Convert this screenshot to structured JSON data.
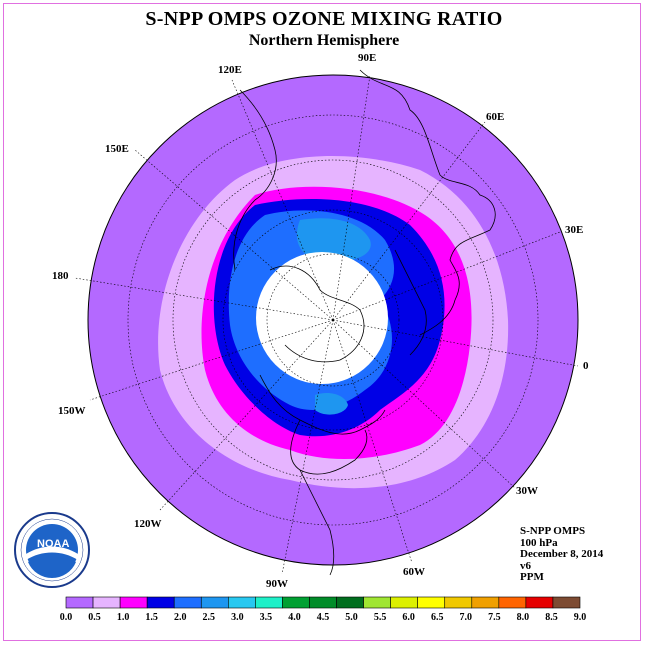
{
  "title": "S-NPP OMPS OZONE MIXING RATIO",
  "subtitle": "Northern Hemisphere",
  "longitude_labels": [
    "90E",
    "60E",
    "30E",
    "0",
    "30W",
    "60W",
    "90W",
    "120W",
    "150W",
    "180",
    "150E",
    "120E"
  ],
  "info": {
    "instrument": "S-NPP OMPS",
    "level": "100 hPa",
    "date": "December 8, 2014",
    "version": "v6",
    "units": "PPM"
  },
  "logo": {
    "text": "NOAA",
    "ring_text": "NATIONAL OCEANIC AND ATMOSPHERIC ADMINISTRATION",
    "ring_text_bottom": "U.S. DEPARTMENT OF COMMERCE"
  },
  "colorbar": {
    "ticks": [
      "0.0",
      "0.5",
      "1.0",
      "1.5",
      "2.0",
      "2.5",
      "3.0",
      "3.5",
      "4.0",
      "4.5",
      "5.0",
      "5.5",
      "6.0",
      "6.5",
      "7.0",
      "7.5",
      "8.0",
      "8.5",
      "9.0"
    ],
    "colors": [
      "#b469ff",
      "#e6b4ff",
      "#ff00ff",
      "#0000e6",
      "#1e6eff",
      "#1e96f0",
      "#28c8f0",
      "#1ef0c8",
      "#00a032",
      "#008c28",
      "#006e1e",
      "#a0e632",
      "#dcf000",
      "#ffff00",
      "#f0c800",
      "#f0a000",
      "#ff6400",
      "#e60000",
      "#7d4b32"
    ]
  },
  "map": {
    "background_color": "#b469ff",
    "coastline_color": "#000000",
    "graticule_color": "#000000",
    "pole_fill": "#ffffff"
  }
}
